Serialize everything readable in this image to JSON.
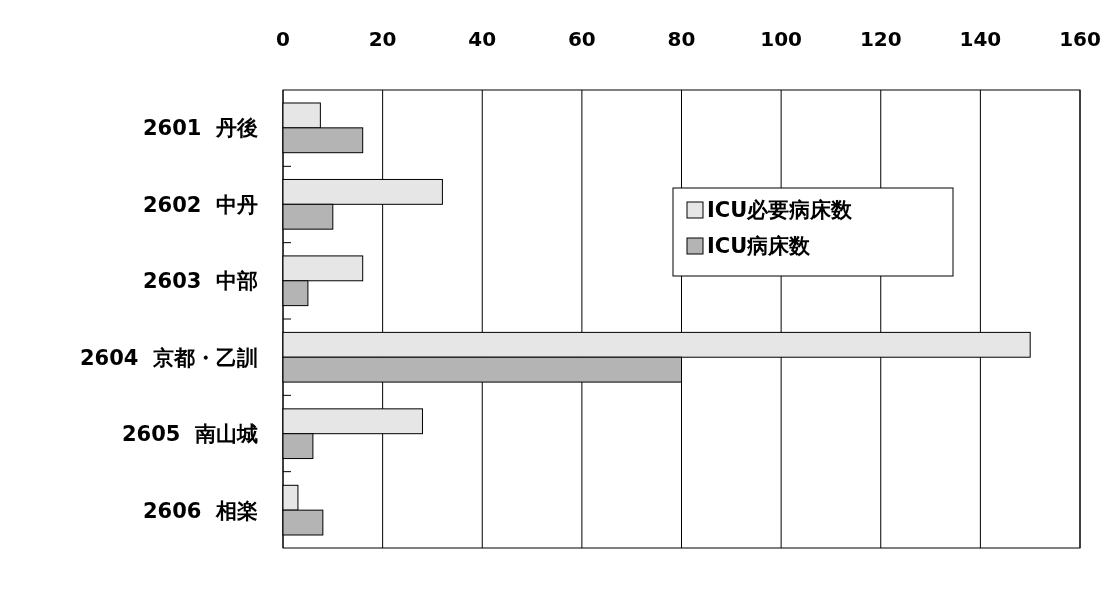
{
  "chart_data": {
    "type": "bar",
    "orientation": "horizontal",
    "categories": [
      "2601  丹後",
      "2602  中丹",
      "2603  中部",
      "2604  京都・乙訓",
      "2605  南山城",
      "2606  相楽"
    ],
    "series": [
      {
        "name": "ICU必要病床数",
        "color": "#e6e6e6",
        "values": [
          7.5,
          32,
          16,
          150,
          28,
          3
        ]
      },
      {
        "name": "ICU病床数",
        "color": "#b4b4b4",
        "values": [
          16,
          10,
          5,
          80,
          6,
          8
        ]
      }
    ],
    "xlim": [
      0,
      160
    ],
    "xticks": [
      0,
      20,
      40,
      60,
      80,
      100,
      120,
      140,
      160
    ],
    "grid": "x",
    "legend": "top right"
  }
}
